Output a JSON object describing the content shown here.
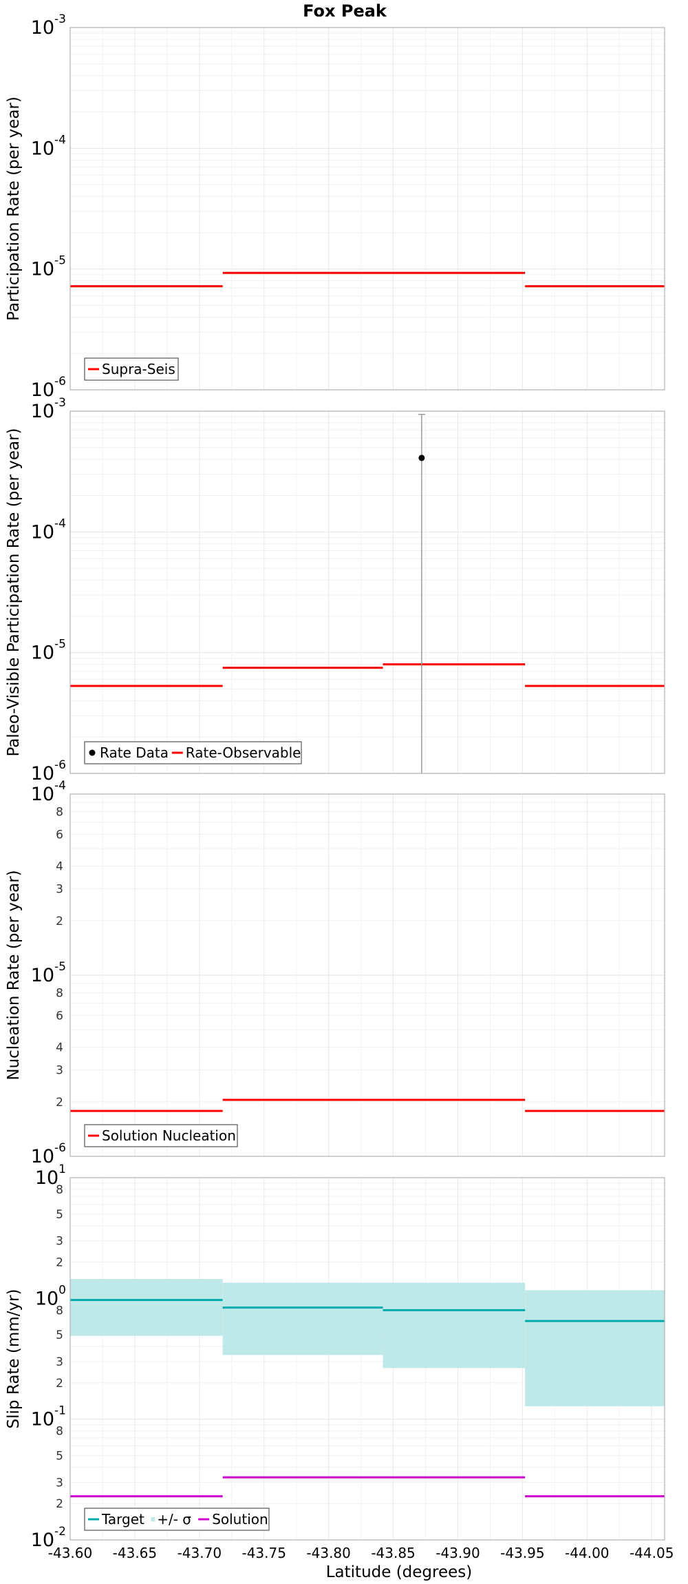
{
  "chart_data": [
    {
      "type": "line",
      "title": "Fox Peak",
      "ylabel": "Participation Rate (per year)",
      "yscale": "log",
      "ylim": [
        1e-06,
        0.001
      ],
      "xlim": [
        -43.6,
        -44.06
      ],
      "y_ticks": [
        {
          "base": "10",
          "exp": "-6",
          "v": 1e-06
        },
        {
          "base": "10",
          "exp": "-5",
          "v": 1e-05
        },
        {
          "base": "10",
          "exp": "-4",
          "v": 0.0001
        },
        {
          "base": "10",
          "exp": "-3",
          "v": 0.001
        }
      ],
      "y_minor_ticks": [],
      "grid": true,
      "legend_position": "bottom-left",
      "series": [
        {
          "name": "Supra-Seis",
          "kind": "step",
          "color": "#ff0000",
          "segments": [
            [
              -43.6,
              -43.718,
              7.2e-06
            ],
            [
              -43.718,
              -43.952,
              9.3e-06
            ],
            [
              -43.952,
              -44.06,
              7.2e-06
            ]
          ]
        }
      ]
    },
    {
      "type": "line",
      "ylabel": "Paleo-Visible Participation Rate (per year)",
      "yscale": "log",
      "ylim": [
        1e-06,
        0.001
      ],
      "xlim": [
        -43.6,
        -44.06
      ],
      "y_ticks": [
        {
          "base": "10",
          "exp": "-6",
          "v": 1e-06
        },
        {
          "base": "10",
          "exp": "-5",
          "v": 1e-05
        },
        {
          "base": "10",
          "exp": "-4",
          "v": 0.0001
        },
        {
          "base": "10",
          "exp": "-3",
          "v": 0.001
        }
      ],
      "y_minor_ticks": [],
      "grid": true,
      "legend_position": "bottom-left",
      "series": [
        {
          "name": "Rate Data",
          "kind": "point",
          "color": "#000000",
          "points": [
            {
              "x": -43.872,
              "y": 0.00041,
              "ylow": 1e-06,
              "yhigh": 0.00094
            }
          ]
        },
        {
          "name": "Rate-Observable",
          "kind": "step",
          "color": "#ff0000",
          "segments": [
            [
              -43.6,
              -43.718,
              5.3e-06
            ],
            [
              -43.718,
              -43.842,
              7.5e-06
            ],
            [
              -43.842,
              -43.952,
              8e-06
            ],
            [
              -43.952,
              -44.06,
              5.3e-06
            ]
          ]
        }
      ]
    },
    {
      "type": "line",
      "ylabel": "Nucleation Rate (per year)",
      "yscale": "log",
      "ylim": [
        1e-06,
        0.0001
      ],
      "xlim": [
        -43.6,
        -44.06
      ],
      "y_ticks": [
        {
          "base": "10",
          "exp": "-6",
          "v": 1e-06
        },
        {
          "base": "10",
          "exp": "-5",
          "v": 1e-05
        },
        {
          "base": "10",
          "exp": "-4",
          "v": 0.0001
        }
      ],
      "y_minor_ticks": [
        {
          "label": "2",
          "v": 2e-06
        },
        {
          "label": "3",
          "v": 3e-06
        },
        {
          "label": "4",
          "v": 4e-06
        },
        {
          "label": "6",
          "v": 6e-06
        },
        {
          "label": "8",
          "v": 8e-06
        },
        {
          "label": "2",
          "v": 2e-05
        },
        {
          "label": "3",
          "v": 3e-05
        },
        {
          "label": "4",
          "v": 4e-05
        },
        {
          "label": "6",
          "v": 6e-05
        },
        {
          "label": "8",
          "v": 8e-05
        }
      ],
      "grid": true,
      "legend_position": "bottom-left",
      "series": [
        {
          "name": "Solution Nucleation",
          "kind": "step",
          "color": "#ff0000",
          "segments": [
            [
              -43.6,
              -43.718,
              1.78e-06
            ],
            [
              -43.718,
              -43.952,
              2.05e-06
            ],
            [
              -43.952,
              -44.06,
              1.78e-06
            ]
          ]
        }
      ]
    },
    {
      "type": "line",
      "ylabel": "Slip Rate (mm/yr)",
      "xlabel": "Latitude (degrees)",
      "yscale": "log",
      "ylim": [
        0.01,
        10
      ],
      "xlim": [
        -43.6,
        -44.06
      ],
      "x_ticks": [
        "-43.60",
        "-43.65",
        "-43.70",
        "-43.75",
        "-43.80",
        "-43.85",
        "-43.90",
        "-43.95",
        "-44.00",
        "-44.05"
      ],
      "x_tick_values": [
        -43.6,
        -43.65,
        -43.7,
        -43.75,
        -43.8,
        -43.85,
        -43.9,
        -43.95,
        -44.0,
        -44.05
      ],
      "y_ticks": [
        {
          "base": "10",
          "exp": "-2",
          "v": 0.01
        },
        {
          "base": "10",
          "exp": "-1",
          "v": 0.1
        },
        {
          "base": "10",
          "exp": "0",
          "v": 1
        },
        {
          "base": "10",
          "exp": "1",
          "v": 10
        }
      ],
      "y_minor_ticks": [
        {
          "label": "2",
          "v": 0.02
        },
        {
          "label": "3",
          "v": 0.03
        },
        {
          "label": "5",
          "v": 0.05
        },
        {
          "label": "8",
          "v": 0.08
        },
        {
          "label": "2",
          "v": 0.2
        },
        {
          "label": "3",
          "v": 0.3
        },
        {
          "label": "5",
          "v": 0.5
        },
        {
          "label": "8",
          "v": 0.8
        },
        {
          "label": "2",
          "v": 2
        },
        {
          "label": "3",
          "v": 3
        },
        {
          "label": "5",
          "v": 5
        },
        {
          "label": "8",
          "v": 8
        }
      ],
      "grid": true,
      "legend_position": "bottom-left",
      "series": [
        {
          "name": "Target",
          "kind": "step",
          "color": "#00aaaa",
          "segments": [
            [
              -43.6,
              -43.718,
              0.97
            ],
            [
              -43.718,
              -43.842,
              0.84
            ],
            [
              -43.842,
              -43.952,
              0.8
            ],
            [
              -43.952,
              -44.06,
              0.65
            ]
          ]
        },
        {
          "name": "+/- σ",
          "kind": "band",
          "color": "#bfe9e9",
          "segments": [
            [
              -43.6,
              -43.718,
              0.49,
              1.45
            ],
            [
              -43.718,
              -43.842,
              0.34,
              1.35
            ],
            [
              -43.842,
              -43.952,
              0.265,
              1.35
            ],
            [
              -43.952,
              -44.06,
              0.128,
              1.17
            ]
          ]
        },
        {
          "name": "Solution",
          "kind": "step",
          "color": "#cc00cc",
          "segments": [
            [
              -43.6,
              -43.718,
              0.023
            ],
            [
              -43.718,
              -43.952,
              0.033
            ],
            [
              -43.952,
              -44.06,
              0.023
            ]
          ]
        }
      ]
    }
  ]
}
